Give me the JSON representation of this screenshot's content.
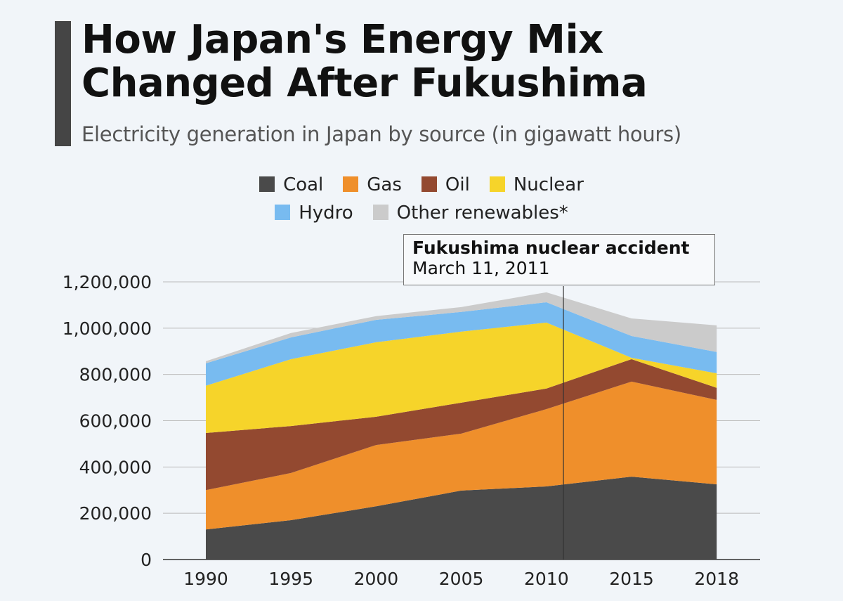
{
  "header": {
    "title_line1": "How Japan's Energy Mix",
    "title_line2": "Changed After Fukushima",
    "subtitle": "Electricity generation in Japan by source (in gigawatt hours)"
  },
  "annotation": {
    "title": "Fukushima nuclear accident",
    "date": "March 11, 2011",
    "year": 2011
  },
  "chart_data": {
    "type": "area",
    "stacked": true,
    "categories": [
      "1990",
      "1995",
      "2000",
      "2005",
      "2010",
      "2015",
      "2018"
    ],
    "ylim": [
      0,
      1200000
    ],
    "yticks": [
      0,
      200000,
      400000,
      600000,
      800000,
      1000000,
      1200000
    ],
    "ytick_labels": [
      "0",
      "200,000",
      "400,000",
      "600,000",
      "800,000",
      "1,000,000",
      "1,200,000"
    ],
    "grid": true,
    "legend_placement": "top",
    "series": [
      {
        "name": "Coal",
        "color": "#4a4a4a",
        "values": [
          130000,
          170000,
          230000,
          298000,
          316000,
          358000,
          325000
        ]
      },
      {
        "name": "Gas",
        "color": "#ef8f2b",
        "values": [
          170000,
          204000,
          265000,
          246000,
          334000,
          411000,
          365000
        ]
      },
      {
        "name": "Oil",
        "color": "#934930",
        "values": [
          247000,
          203000,
          122000,
          134000,
          89000,
          97000,
          52000
        ]
      },
      {
        "name": "Nuclear",
        "color": "#f6d42a",
        "values": [
          204000,
          289000,
          322000,
          307000,
          285000,
          6000,
          63000
        ]
      },
      {
        "name": "Hydro",
        "color": "#78bbf0",
        "values": [
          97000,
          94000,
          97000,
          85000,
          88000,
          94000,
          92000
        ]
      },
      {
        "name": "Other renewables*",
        "color": "#cbcbcb",
        "values": [
          9000,
          19000,
          16000,
          21000,
          43000,
          76000,
          115000
        ]
      }
    ]
  }
}
